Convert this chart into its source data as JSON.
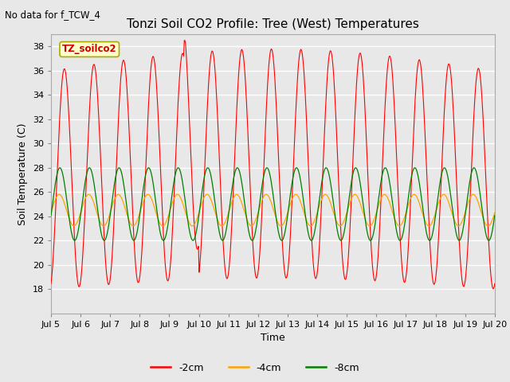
{
  "title": "Tonzi Soil CO2 Profile: Tree (West) Temperatures",
  "no_data_label": "No data for f_TCW_4",
  "ylabel": "Soil Temperature (C)",
  "xlabel": "Time",
  "legend_label": "TZ_soilco2",
  "ylim": [
    16,
    39
  ],
  "line_colors": {
    "2cm": "#ff0000",
    "4cm": "#ffa500",
    "8cm": "#008000"
  },
  "background_color": "#e8e8e8",
  "plot_bg_color": "#e8e8e8",
  "grid_color": "#ffffff",
  "title_fontsize": 11,
  "axis_fontsize": 9,
  "tick_fontsize": 8
}
